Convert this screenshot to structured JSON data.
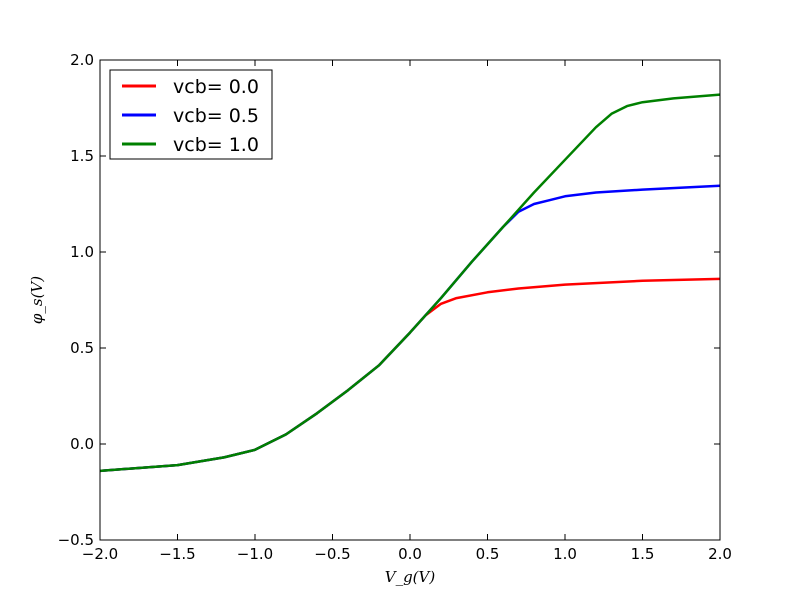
{
  "chart_data": {
    "type": "line",
    "title": "",
    "xlabel": "V_g(V)",
    "ylabel": "φ_s(V)",
    "xlim": [
      -2.0,
      2.0
    ],
    "ylim": [
      -0.5,
      2.0
    ],
    "xticks": [
      -2.0,
      -1.5,
      -1.0,
      -0.5,
      0.0,
      0.5,
      1.0,
      1.5,
      2.0
    ],
    "yticks": [
      -0.5,
      0.0,
      0.5,
      1.0,
      1.5,
      2.0
    ],
    "xtick_labels": [
      "−2.0",
      "−1.5",
      "−1.0",
      "−0.5",
      "0.0",
      "0.5",
      "1.0",
      "1.5",
      "2.0"
    ],
    "ytick_labels": [
      "−0.5",
      "0.0",
      "0.5",
      "1.0",
      "1.5",
      "2.0"
    ],
    "grid": false,
    "legend_position": "top-left",
    "series": [
      {
        "name": "vcb= 0.0",
        "color": "#ff0000",
        "x": [
          -2.0,
          -1.5,
          -1.2,
          -1.0,
          -0.8,
          -0.6,
          -0.4,
          -0.2,
          0.0,
          0.1,
          0.2,
          0.3,
          0.5,
          0.7,
          1.0,
          1.5,
          2.0
        ],
        "y": [
          -0.14,
          -0.11,
          -0.07,
          -0.03,
          0.05,
          0.16,
          0.28,
          0.41,
          0.58,
          0.67,
          0.73,
          0.76,
          0.79,
          0.81,
          0.83,
          0.85,
          0.86
        ]
      },
      {
        "name": "vcb= 0.5",
        "color": "#0000ff",
        "x": [
          -2.0,
          -1.5,
          -1.2,
          -1.0,
          -0.8,
          -0.6,
          -0.4,
          -0.2,
          0.0,
          0.2,
          0.4,
          0.6,
          0.7,
          0.8,
          0.9,
          1.0,
          1.2,
          1.5,
          2.0
        ],
        "y": [
          -0.14,
          -0.11,
          -0.07,
          -0.03,
          0.05,
          0.16,
          0.28,
          0.41,
          0.58,
          0.76,
          0.95,
          1.13,
          1.21,
          1.25,
          1.27,
          1.29,
          1.31,
          1.325,
          1.345
        ]
      },
      {
        "name": "vcb= 1.0",
        "color": "#008000",
        "x": [
          -2.0,
          -1.5,
          -1.2,
          -1.0,
          -0.8,
          -0.6,
          -0.4,
          -0.2,
          0.0,
          0.2,
          0.4,
          0.6,
          0.8,
          1.0,
          1.2,
          1.3,
          1.4,
          1.5,
          1.7,
          2.0
        ],
        "y": [
          -0.14,
          -0.11,
          -0.07,
          -0.03,
          0.05,
          0.16,
          0.28,
          0.41,
          0.58,
          0.76,
          0.95,
          1.13,
          1.31,
          1.48,
          1.65,
          1.72,
          1.76,
          1.78,
          1.8,
          1.82
        ]
      }
    ]
  }
}
